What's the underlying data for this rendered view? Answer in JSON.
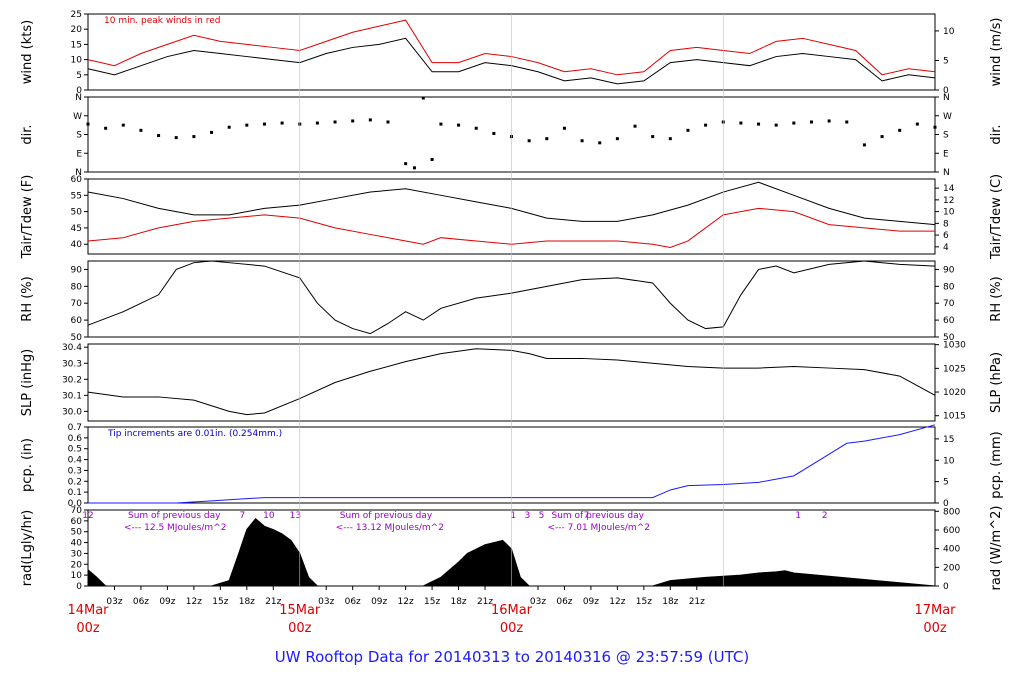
{
  "footer_title": "UW Rooftop Data for 20140313  to  20140316 @ 23:57:59  (UTC)",
  "colors": {
    "trace": "#000000",
    "accent_red": "#e00000",
    "pcp_blue": "#1a1aff",
    "note_purple": "#9900cc"
  },
  "chart_data": [
    {
      "type": "line",
      "ylabel": "wind (kts)",
      "y2label": "wind (m/s)",
      "ylim": [
        0,
        25
      ],
      "yticks": [
        0,
        5,
        10,
        15,
        20,
        25
      ],
      "y2ticks": [
        0,
        5,
        10
      ],
      "y2_per_y": 0.5144,
      "annotation": "10 min. peak winds in red",
      "series": [
        {
          "color": "#000000",
          "x": [
            0,
            3,
            6,
            9,
            12,
            15,
            18,
            21,
            24,
            27,
            30,
            33,
            36,
            39,
            42,
            45,
            48,
            51,
            54,
            57,
            60,
            63,
            66,
            69,
            72,
            75,
            78,
            81,
            84,
            87,
            90,
            93,
            96
          ],
          "y": [
            7,
            5,
            8,
            11,
            13,
            12,
            11,
            10,
            9,
            12,
            14,
            15,
            17,
            6,
            6,
            9,
            8,
            6,
            3,
            4,
            2,
            3,
            9,
            10,
            9,
            8,
            11,
            12,
            11,
            10,
            3,
            5,
            4
          ]
        },
        {
          "color": "#e00000",
          "x": [
            0,
            3,
            6,
            9,
            12,
            15,
            18,
            21,
            24,
            27,
            30,
            33,
            36,
            39,
            42,
            45,
            48,
            51,
            54,
            57,
            60,
            63,
            66,
            69,
            72,
            75,
            78,
            81,
            84,
            87,
            90,
            93,
            96
          ],
          "y": [
            10,
            8,
            12,
            15,
            18,
            16,
            15,
            14,
            13,
            16,
            19,
            21,
            23,
            9,
            9,
            12,
            11,
            9,
            6,
            7,
            5,
            6,
            13,
            14,
            13,
            12,
            16,
            17,
            15,
            13,
            5,
            7,
            6
          ]
        }
      ]
    },
    {
      "type": "scatter",
      "ylabel": "dir.",
      "y2label": "dir.",
      "yticklabels": [
        "N",
        "E",
        "S",
        "W",
        "N"
      ],
      "ylim": [
        0,
        360
      ],
      "series": [
        {
          "color": "#000000",
          "x": [
            0,
            2,
            4,
            6,
            8,
            10,
            12,
            14,
            16,
            18,
            20,
            22,
            24,
            26,
            28,
            30,
            32,
            34,
            36,
            37,
            38,
            39,
            40,
            42,
            44,
            46,
            48,
            50,
            52,
            54,
            56,
            58,
            60,
            62,
            64,
            66,
            68,
            70,
            72,
            74,
            76,
            78,
            80,
            82,
            84,
            86,
            88,
            90,
            92,
            94,
            96
          ],
          "y": [
            230,
            210,
            225,
            200,
            175,
            165,
            170,
            190,
            215,
            225,
            230,
            235,
            230,
            235,
            240,
            245,
            250,
            240,
            40,
            20,
            355,
            60,
            230,
            225,
            210,
            185,
            170,
            150,
            160,
            210,
            150,
            140,
            160,
            220,
            170,
            160,
            200,
            225,
            240,
            235,
            230,
            225,
            235,
            240,
            245,
            240,
            130,
            170,
            200,
            230,
            215
          ]
        }
      ]
    },
    {
      "type": "line",
      "ylabel": "Tair/Tdew (F)",
      "y2label": "Tair/Tdew (C)",
      "ylim": [
        37,
        60
      ],
      "yticks": [
        40,
        45,
        50,
        55,
        60
      ],
      "y2ticks": [
        4,
        6,
        8,
        10,
        12,
        14
      ],
      "y2_convert": "f_to_c",
      "series": [
        {
          "color": "#000000",
          "x": [
            0,
            4,
            8,
            12,
            16,
            20,
            24,
            28,
            32,
            36,
            40,
            44,
            48,
            52,
            56,
            60,
            64,
            68,
            72,
            76,
            80,
            84,
            88,
            92,
            96
          ],
          "y": [
            56,
            54,
            51,
            49,
            49,
            51,
            52,
            54,
            56,
            57,
            55,
            53,
            51,
            48,
            47,
            47,
            49,
            52,
            56,
            59,
            55,
            51,
            48,
            47,
            46
          ]
        },
        {
          "color": "#e00000",
          "x": [
            0,
            4,
            8,
            12,
            16,
            20,
            24,
            28,
            32,
            36,
            38,
            40,
            44,
            48,
            52,
            56,
            60,
            64,
            66,
            68,
            72,
            76,
            80,
            84,
            88,
            92,
            96
          ],
          "y": [
            41,
            42,
            45,
            47,
            48,
            49,
            48,
            45,
            43,
            41,
            40,
            42,
            41,
            40,
            41,
            41,
            41,
            40,
            39,
            41,
            49,
            51,
            50,
            46,
            45,
            44,
            44
          ]
        }
      ]
    },
    {
      "type": "line",
      "ylabel": "RH (%)",
      "y2label": "RH (%)",
      "ylim": [
        50,
        95
      ],
      "yticks": [
        50,
        60,
        70,
        80,
        90
      ],
      "y2ticks": [
        50,
        60,
        70,
        80,
        90
      ],
      "series": [
        {
          "color": "#000000",
          "x": [
            0,
            4,
            8,
            10,
            12,
            14,
            16,
            20,
            24,
            26,
            28,
            30,
            32,
            34,
            36,
            38,
            40,
            44,
            48,
            52,
            56,
            60,
            64,
            66,
            68,
            70,
            72,
            74,
            76,
            78,
            80,
            84,
            88,
            92,
            96
          ],
          "y": [
            57,
            65,
            75,
            90,
            94,
            95,
            94,
            92,
            85,
            70,
            60,
            55,
            52,
            58,
            65,
            60,
            67,
            73,
            76,
            80,
            84,
            85,
            82,
            70,
            60,
            55,
            56,
            75,
            90,
            92,
            88,
            93,
            95,
            93,
            92
          ]
        }
      ]
    },
    {
      "type": "line",
      "ylabel": "SLP (inHg)",
      "y2label": "SLP (hPa)",
      "ylim": [
        29.94,
        30.42
      ],
      "yticks": [
        30.0,
        30.1,
        30.2,
        30.3,
        30.4
      ],
      "y2ticks": [
        1015,
        1020,
        1025,
        1030
      ],
      "y2_convert": "inhg_to_hpa",
      "series": [
        {
          "color": "#000000",
          "x": [
            0,
            4,
            8,
            12,
            16,
            18,
            20,
            24,
            28,
            32,
            36,
            40,
            44,
            48,
            50,
            52,
            56,
            60,
            64,
            68,
            72,
            76,
            80,
            84,
            88,
            92,
            96
          ],
          "y": [
            30.12,
            30.09,
            30.09,
            30.07,
            30.0,
            29.98,
            29.99,
            30.08,
            30.18,
            30.25,
            30.31,
            30.36,
            30.39,
            30.38,
            30.36,
            30.33,
            30.33,
            30.32,
            30.3,
            30.28,
            30.27,
            30.27,
            30.28,
            30.27,
            30.26,
            30.22,
            30.1
          ]
        }
      ]
    },
    {
      "type": "area",
      "ylabel": "pcp. (in)",
      "y2label": "pcp. (mm)",
      "ylim": [
        0,
        0.7
      ],
      "yticks": [
        0.0,
        0.1,
        0.2,
        0.3,
        0.4,
        0.5,
        0.6,
        0.7
      ],
      "y2ticks": [
        0,
        5,
        10,
        15
      ],
      "y2_convert": "in_to_mm",
      "annotation": "Tip increments are 0.01in. (0.254mm.)",
      "series": [
        {
          "color": "#1a1aff",
          "x": [
            0,
            10,
            14,
            18,
            20,
            60,
            64,
            66,
            68,
            72,
            76,
            80,
            84,
            86,
            88,
            92,
            96
          ],
          "y": [
            0.0,
            0.0,
            0.02,
            0.04,
            0.05,
            0.05,
            0.05,
            0.12,
            0.16,
            0.17,
            0.19,
            0.25,
            0.45,
            0.55,
            0.57,
            0.63,
            0.72
          ]
        }
      ]
    },
    {
      "type": "area",
      "ylabel": "rad(Lgly/hr)",
      "y2label": "rad (W/m^2)",
      "ylim": [
        0,
        70
      ],
      "yticks": [
        0,
        10,
        20,
        30,
        40,
        50,
        60,
        70
      ],
      "y2ticks": [
        0,
        200,
        400,
        600,
        800
      ],
      "y2_convert": "lgly_to_wm2",
      "daily_notes": [
        {
          "header": "Sum of previous day",
          "value": "<--- 12.5 MJoules/m^2"
        },
        {
          "header": "Sum of previous day",
          "value": "<--- 13.12 MJoules/m^2"
        },
        {
          "header": "Sum of previous day",
          "value": "<--- 7.01 MJoules/m^2"
        }
      ],
      "hour_marks": [
        "12",
        "7",
        "10",
        "13",
        "1",
        "3",
        "5",
        "7",
        "1",
        "2"
      ],
      "series": [
        {
          "color": "#000000",
          "x": [
            0,
            1,
            2,
            14,
            16,
            17,
            18,
            19,
            20,
            21,
            22,
            23,
            24,
            25,
            26,
            38,
            40,
            42,
            43,
            44,
            45,
            46,
            47,
            48,
            49,
            50,
            64,
            66,
            70,
            72,
            74,
            76,
            78,
            79,
            80,
            96
          ],
          "y": [
            15,
            8,
            0,
            0,
            5,
            28,
            52,
            62,
            55,
            52,
            48,
            42,
            30,
            8,
            0,
            0,
            8,
            22,
            30,
            34,
            38,
            40,
            42,
            34,
            8,
            0,
            0,
            5,
            8,
            9,
            10,
            12,
            13,
            14,
            12,
            0
          ]
        }
      ]
    }
  ],
  "x_axis": {
    "range_hours": [
      0,
      96
    ],
    "hour_labels": [
      "03z",
      "06z",
      "09z",
      "12z",
      "15z",
      "18z",
      "21z",
      "03z",
      "06z",
      "09z",
      "12z",
      "15z",
      "18z",
      "21z",
      "03z",
      "06z",
      "09z",
      "12z",
      "15z",
      "18z",
      "21z"
    ],
    "hour_values": [
      3,
      6,
      9,
      12,
      15,
      18,
      21,
      27,
      30,
      33,
      36,
      39,
      42,
      45,
      51,
      54,
      57,
      60,
      63,
      66,
      69
    ],
    "day_labels": [
      {
        "date": "14Mar",
        "z": "00z",
        "hour": 0
      },
      {
        "date": "15Mar",
        "z": "00z",
        "hour": 24
      },
      {
        "date": "16Mar",
        "z": "00z",
        "hour": 48
      },
      {
        "date": "17Mar",
        "z": "00z",
        "hour": 72
      }
    ]
  }
}
